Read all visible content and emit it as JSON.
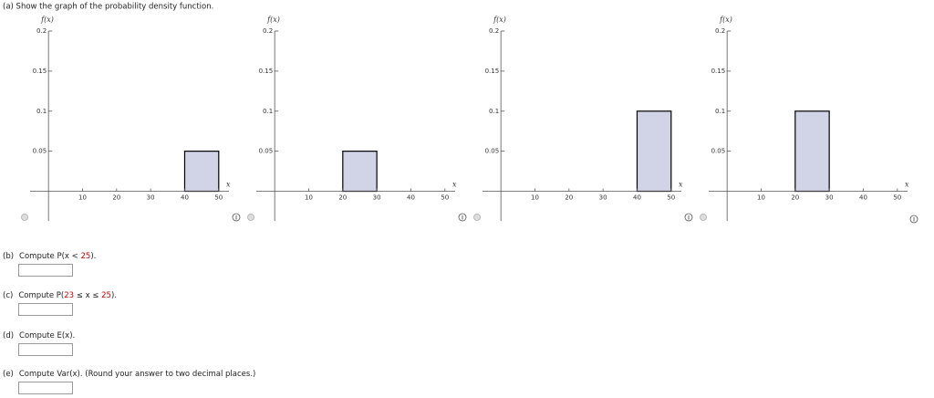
{
  "part_a": "(a) Show the graph of the probability density function.",
  "chart_data": [
    {
      "type": "histogram",
      "xlabel": "x",
      "ylabel": "f(x)",
      "bins": [
        40,
        50
      ],
      "values": [
        0.05
      ],
      "color": "#d1d3e6",
      "xlim": [
        -5.4,
        53
      ],
      "ylim": [
        -0.037,
        0.2
      ],
      "xticks": [
        10,
        20,
        30,
        40,
        50
      ],
      "yticks": [
        0.05,
        0.1,
        0.15,
        0.2
      ]
    },
    {
      "type": "histogram",
      "xlabel": "x",
      "ylabel": "f(x)",
      "bins": [
        20,
        30
      ],
      "values": [
        0.05
      ],
      "color": "#d1d3e6",
      "xlim": [
        -5.4,
        53
      ],
      "ylim": [
        -0.037,
        0.2
      ],
      "xticks": [
        10,
        20,
        30,
        40,
        50
      ],
      "yticks": [
        0.05,
        0.1,
        0.15,
        0.2
      ]
    },
    {
      "type": "histogram",
      "xlabel": "x",
      "ylabel": "f(x)",
      "bins": [
        40,
        50
      ],
      "values": [
        0.1
      ],
      "color": "#d1d3e6",
      "xlim": [
        -5.4,
        53
      ],
      "ylim": [
        -0.037,
        0.2
      ],
      "xticks": [
        10,
        20,
        30,
        40,
        50
      ],
      "yticks": [
        0.05,
        0.1,
        0.15,
        0.2
      ]
    },
    {
      "type": "histogram",
      "xlabel": "x",
      "ylabel": "f(x)",
      "bins": [
        20,
        30
      ],
      "values": [
        0.1
      ],
      "color": "#d1d3e6",
      "xlim": [
        -5.4,
        53
      ],
      "ylim": [
        -0.037,
        0.2
      ],
      "xticks": [
        10,
        20,
        30,
        40,
        50
      ],
      "yticks": [
        0.05,
        0.1,
        0.15,
        0.2
      ]
    }
  ],
  "parts": [
    {
      "label": "(b)",
      "segments": [
        {
          "text": "Compute P(x < "
        },
        {
          "text": "25",
          "color": "#cc0000"
        },
        {
          "text": ")."
        }
      ]
    },
    {
      "label": "(c)",
      "segments": [
        {
          "text": "Compute P("
        },
        {
          "text": "23",
          "color": "#cc0000"
        },
        {
          "text": " ≤ x ≤ "
        },
        {
          "text": "25",
          "color": "#cc0000"
        },
        {
          "text": ")."
        }
      ]
    },
    {
      "label": "(d)",
      "segments": [
        {
          "text": "Compute E(x)."
        }
      ]
    },
    {
      "label": "(e)",
      "segments": [
        {
          "text": "Compute Var(x). (Round your answer to two decimal places.)"
        }
      ]
    }
  ]
}
